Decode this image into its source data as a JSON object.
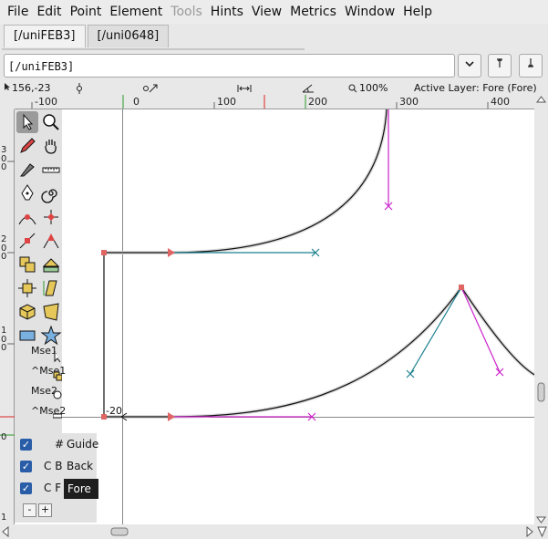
{
  "menu": [
    {
      "label": "File",
      "enabled": true
    },
    {
      "label": "Edit",
      "enabled": true
    },
    {
      "label": "Point",
      "enabled": true
    },
    {
      "label": "Element",
      "enabled": true
    },
    {
      "label": "Tools",
      "enabled": false
    },
    {
      "label": "Hints",
      "enabled": true
    },
    {
      "label": "View",
      "enabled": true
    },
    {
      "label": "Metrics",
      "enabled": true
    },
    {
      "label": "Window",
      "enabled": true
    },
    {
      "label": "Help",
      "enabled": true
    }
  ],
  "tabs": [
    {
      "label": "[/uniFEB3]",
      "active": true
    },
    {
      "label": "[/uni0648]",
      "active": false
    }
  ],
  "glyph_name_field": {
    "value": "[/uniFEB3]"
  },
  "infobar": {
    "cursor": "156,-23",
    "zoom": "100%",
    "active_layer": "Active Layer: Fore (Fore)"
  },
  "ruler": {
    "top_labels": [
      "-100",
      "0",
      "100",
      "200",
      "300",
      "400"
    ],
    "left_labels": [
      "3",
      "0",
      "0",
      "2",
      "0",
      "0",
      "1",
      "0",
      "0",
      "0",
      "1"
    ]
  },
  "canvas": {
    "point_label": "-20"
  },
  "toolbox": {
    "mse": [
      {
        "label": "Mse1"
      },
      {
        "label": "^Mse1"
      },
      {
        "label": "Mse2"
      },
      {
        "label": "^Mse2"
      }
    ]
  },
  "layers": [
    {
      "code": "#",
      "name": "Guide",
      "checked": true,
      "selected": false
    },
    {
      "code": "C B",
      "name": "Back",
      "checked": true,
      "selected": false
    },
    {
      "code": "C F",
      "name": "Fore",
      "checked": true,
      "selected": true
    }
  ],
  "layer_buttons": {
    "remove": "-",
    "add": "+"
  },
  "colors": {
    "control_blue": "#1b7f8f",
    "control_magenta": "#cc22cc",
    "point_red": "#e06666",
    "guide_green": "#2a9a2a",
    "selection": "#1e1e1e"
  }
}
